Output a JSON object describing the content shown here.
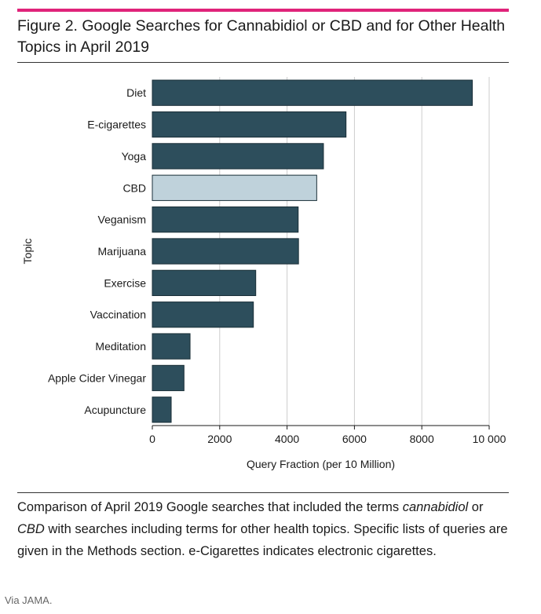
{
  "figure": {
    "title": "Figure 2. Google Searches for Cannabidiol or CBD and for Other Health Topics in April 2019"
  },
  "caption": {
    "part1": "Comparison of April 2019 Google searches that included the terms ",
    "term1": "cannabidiol",
    "part2": " or ",
    "term2": "CBD",
    "part3": " with searches including terms for other health topics. Specific lists of queries are given in the Methods section. e-Cigarettes indicates electronic cigarettes."
  },
  "credit": "Via JAMA.",
  "chart_data": {
    "type": "bar",
    "orientation": "horizontal",
    "xlabel": "Query Fraction (per 10 Million)",
    "ylabel": "Topic",
    "xlim": [
      0,
      10000
    ],
    "xticks": [
      0,
      2000,
      4000,
      6000,
      8000,
      10000
    ],
    "xtick_labels": [
      "0",
      "2000",
      "4000",
      "6000",
      "8000",
      "10 000"
    ],
    "grid": "vertical",
    "categories": [
      "Diet",
      "E-cigarettes",
      "Yoga",
      "CBD",
      "Veganism",
      "Marijuana",
      "Exercise",
      "Vaccination",
      "Meditation",
      "Apple Cider Vinegar",
      "Acupuncture"
    ],
    "values": [
      9500,
      5750,
      5080,
      4880,
      4330,
      4340,
      3070,
      3000,
      1120,
      940,
      560
    ],
    "highlight": "CBD",
    "colors": {
      "bar": "#2d4e5c",
      "highlight": "#bfd2db",
      "edge": "#1a2f38",
      "grid": "#cccccc"
    }
  }
}
